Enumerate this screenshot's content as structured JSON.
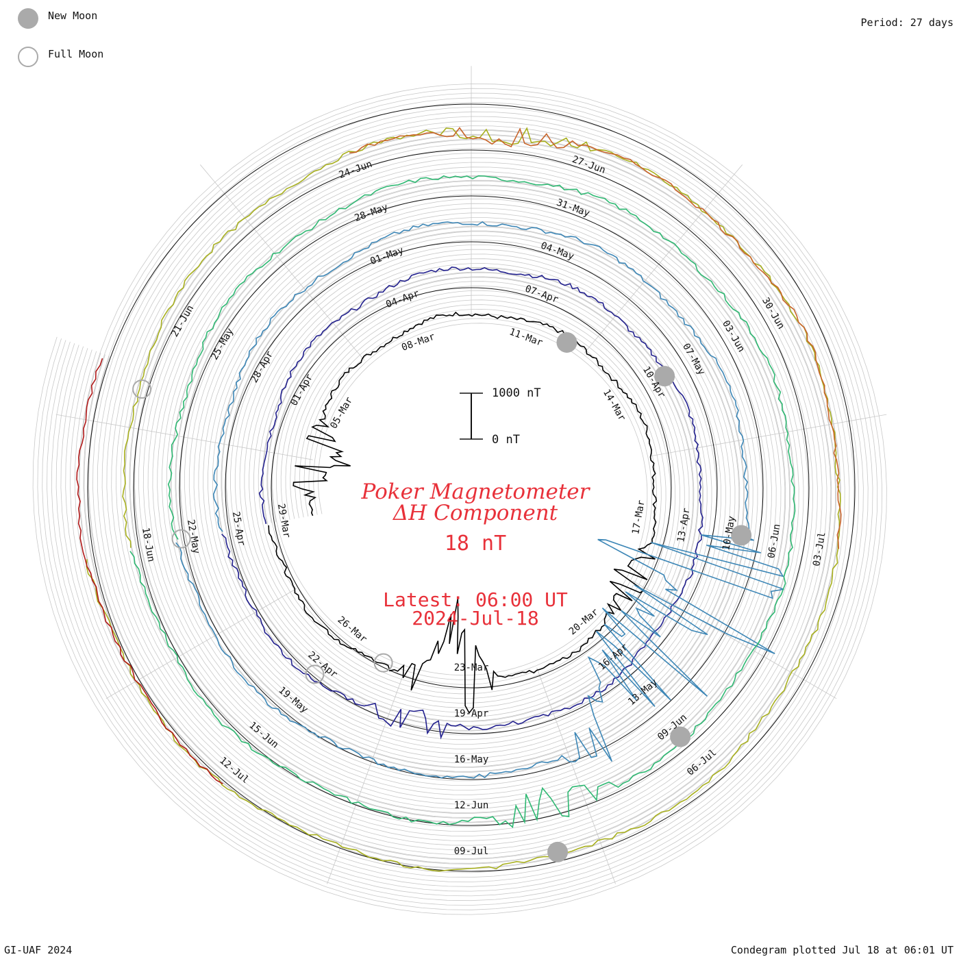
{
  "header": {
    "legend_new_moon": "New Moon",
    "legend_full_moon": "Full Moon",
    "period": "Period: 27 days"
  },
  "footer": {
    "credit": "GI-UAF 2024",
    "plotted": "Condegram plotted Jul 18 at 06:01 UT"
  },
  "center": {
    "title_line1": "Poker Magnetometer",
    "title_line2": "ΔH Component",
    "scale_value": "18 nT",
    "latest_line1": "Latest: 06:00 UT",
    "latest_line2": "2024-Jul-18",
    "scale_bar_top": "1000 nT",
    "scale_bar_bottom": "0 nT"
  },
  "colors": {
    "title": "#e8313a",
    "moon": "#aaaaaa",
    "grid": "#c8c8c8"
  },
  "chart_data": {
    "type": "line",
    "chart_kind": "condegram spiral",
    "period_days": 27,
    "component": "ΔH",
    "units": "nT",
    "start_date": "02-Mar",
    "end_date": "18-Jul",
    "series": [
      {
        "color": "#000000",
        "start": "02-Mar",
        "end": "29-Mar"
      },
      {
        "color": "#22208e",
        "start": "29-Mar",
        "end": "25-Apr"
      },
      {
        "color": "#3c86b6",
        "start": "25-Apr",
        "end": "22-May"
      },
      {
        "color": "#2eb872",
        "start": "22-May",
        "end": "18-Jun"
      },
      {
        "color": "#a8b01e",
        "start": "18-Jun",
        "end": "15-Jul"
      },
      {
        "color": "#c8642a",
        "start": "24-Jun",
        "end": "03-Jul"
      },
      {
        "color": "#b01818",
        "start": "12-Jul",
        "end": "18-Jul"
      }
    ],
    "date_labels": [
      {
        "text": "05-Mar",
        "day": 3
      },
      {
        "text": "08-Mar",
        "day": 6
      },
      {
        "text": "11-Mar",
        "day": 9
      },
      {
        "text": "14-Mar",
        "day": 12
      },
      {
        "text": "17-Mar",
        "day": 15
      },
      {
        "text": "20-Mar",
        "day": 18
      },
      {
        "text": "23-Mar",
        "day": 21
      },
      {
        "text": "26-Mar",
        "day": 24
      },
      {
        "text": "29-Mar",
        "day": 27
      },
      {
        "text": "01-Apr",
        "day": 30
      },
      {
        "text": "04-Apr",
        "day": 33
      },
      {
        "text": "07-Apr",
        "day": 36
      },
      {
        "text": "10-Apr",
        "day": 39
      },
      {
        "text": "13-Apr",
        "day": 42
      },
      {
        "text": "16-Apr",
        "day": 45
      },
      {
        "text": "19-Apr",
        "day": 48
      },
      {
        "text": "22-Apr",
        "day": 51
      },
      {
        "text": "25-Apr",
        "day": 54
      },
      {
        "text": "28-Apr",
        "day": 57
      },
      {
        "text": "01-May",
        "day": 60
      },
      {
        "text": "04-May",
        "day": 63
      },
      {
        "text": "07-May",
        "day": 66
      },
      {
        "text": "10-May",
        "day": 69
      },
      {
        "text": "13-May",
        "day": 72
      },
      {
        "text": "16-May",
        "day": 75
      },
      {
        "text": "19-May",
        "day": 78
      },
      {
        "text": "22-May",
        "day": 81
      },
      {
        "text": "25-May",
        "day": 84
      },
      {
        "text": "28-May",
        "day": 87
      },
      {
        "text": "31-May",
        "day": 90
      },
      {
        "text": "03-Jun",
        "day": 93
      },
      {
        "text": "06-Jun",
        "day": 96
      },
      {
        "text": "09-Jun",
        "day": 99
      },
      {
        "text": "12-Jun",
        "day": 102
      },
      {
        "text": "15-Jun",
        "day": 105
      },
      {
        "text": "18-Jun",
        "day": 108
      },
      {
        "text": "21-Jun",
        "day": 111
      },
      {
        "text": "24-Jun",
        "day": 114
      },
      {
        "text": "27-Jun",
        "day": 117
      },
      {
        "text": "30-Jun",
        "day": 120
      },
      {
        "text": "03-Jul",
        "day": 123
      },
      {
        "text": "06-Jul",
        "day": 126
      },
      {
        "text": "09-Jul",
        "day": 129
      },
      {
        "text": "12-Jul",
        "day": 132
      }
    ],
    "new_moons": [
      10,
      39,
      69,
      99,
      128
    ],
    "full_moons": [
      23,
      51,
      81,
      110
    ],
    "disturbances": [
      {
        "day": 1.5,
        "amp": 70
      },
      {
        "day": 21.5,
        "amp": 130
      },
      {
        "day": 16.5,
        "amp": 40
      },
      {
        "day": 49,
        "amp": 30
      },
      {
        "day": 70,
        "amp": 240
      },
      {
        "day": 71.5,
        "amp": 180
      },
      {
        "day": 72.5,
        "amp": 110
      },
      {
        "day": 101,
        "amp": 40
      },
      {
        "day": 116,
        "amp": 20
      }
    ]
  }
}
